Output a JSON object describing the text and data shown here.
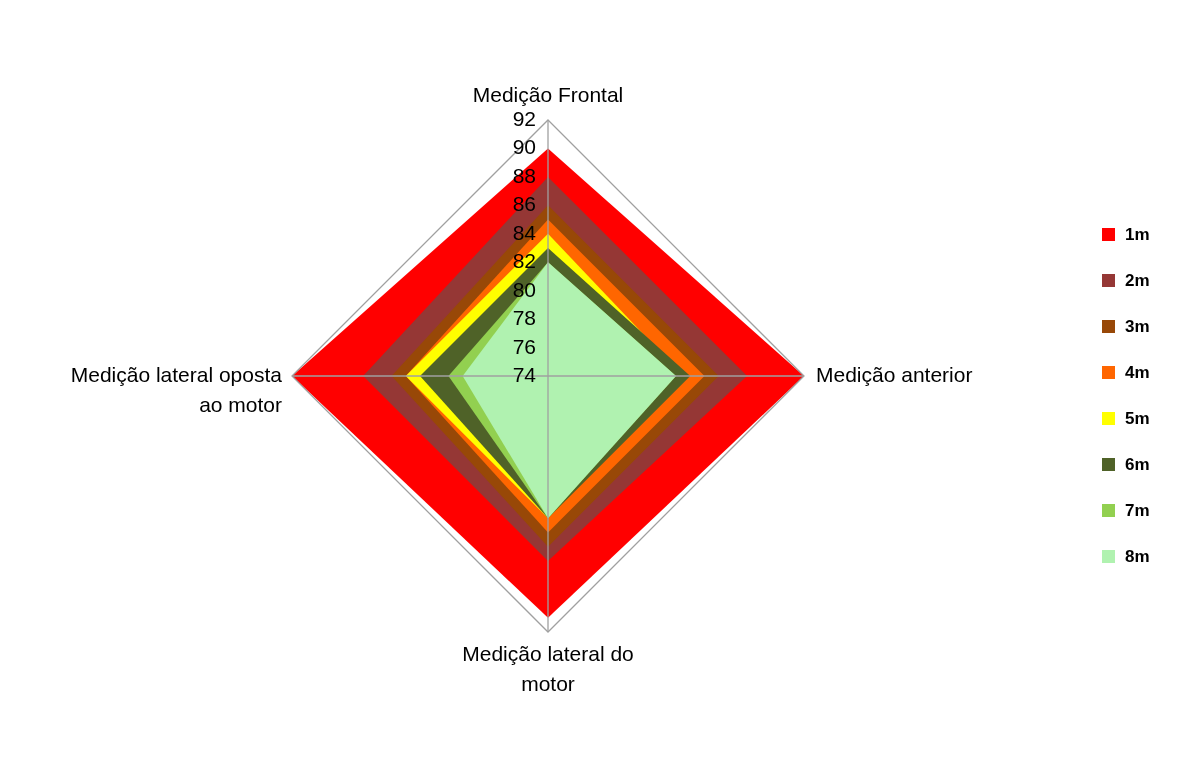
{
  "chart_data": {
    "type": "radar",
    "categories": [
      "Medição Frontal",
      "Medição anterior",
      "Medição lateral do motor",
      "Medição lateral oposta ao motor"
    ],
    "ylim": [
      74,
      92
    ],
    "yticks": [
      74,
      76,
      78,
      80,
      82,
      84,
      86,
      88,
      90,
      92
    ],
    "grid": false,
    "legend": "right",
    "series": [
      {
        "name": "1m",
        "color": "#ff0000",
        "values": [
          90,
          92,
          91,
          92
        ]
      },
      {
        "name": "2m",
        "color": "#953735",
        "values": [
          88,
          88,
          87,
          87
        ]
      },
      {
        "name": "3m",
        "color": "#984807",
        "values": [
          86,
          86,
          86,
          85
        ]
      },
      {
        "name": "4m",
        "color": "#ff6600",
        "values": [
          85,
          85,
          85,
          84
        ]
      },
      {
        "name": "5m",
        "color": "#ffff00",
        "values": [
          84,
          83.5,
          84,
          84
        ]
      },
      {
        "name": "6m",
        "color": "#4f6228",
        "values": [
          83,
          84,
          84,
          83
        ]
      },
      {
        "name": "7m",
        "color": "#92d050",
        "values": [
          82,
          83,
          84,
          81
        ]
      },
      {
        "name": "8m",
        "color": "#b0f2b0",
        "values": [
          82,
          83,
          84,
          80
        ]
      }
    ]
  }
}
